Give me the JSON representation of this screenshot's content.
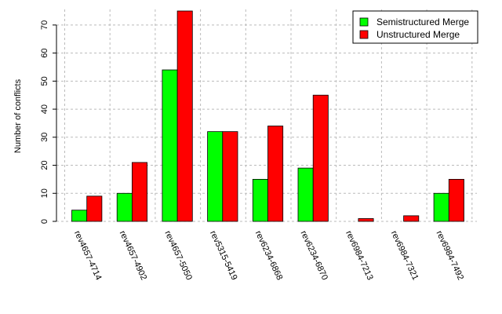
{
  "chart_data": {
    "type": "bar",
    "title": "",
    "xlabel": "",
    "ylabel": "Number of conflicts",
    "ylim": [
      0,
      75
    ],
    "yticks": [
      0,
      10,
      20,
      30,
      40,
      50,
      60,
      70
    ],
    "grid": true,
    "legend_position": "top-right",
    "categories": [
      "rev4657-4714",
      "rev4657-4902",
      "rev4657-5050",
      "rev5315-5419",
      "rev6234-6868",
      "rev6234-6870",
      "rev6984-7213",
      "rev6984-7321",
      "rev6984-7492"
    ],
    "series": [
      {
        "name": "Semistructured Merge",
        "color": "#00ff00",
        "values": [
          4,
          10,
          54,
          32,
          15,
          19,
          0,
          0,
          10
        ]
      },
      {
        "name": "Unstructured Merge",
        "color": "#ff0000",
        "values": [
          9,
          21,
          75,
          32,
          34,
          45,
          1,
          2,
          15
        ]
      }
    ]
  }
}
